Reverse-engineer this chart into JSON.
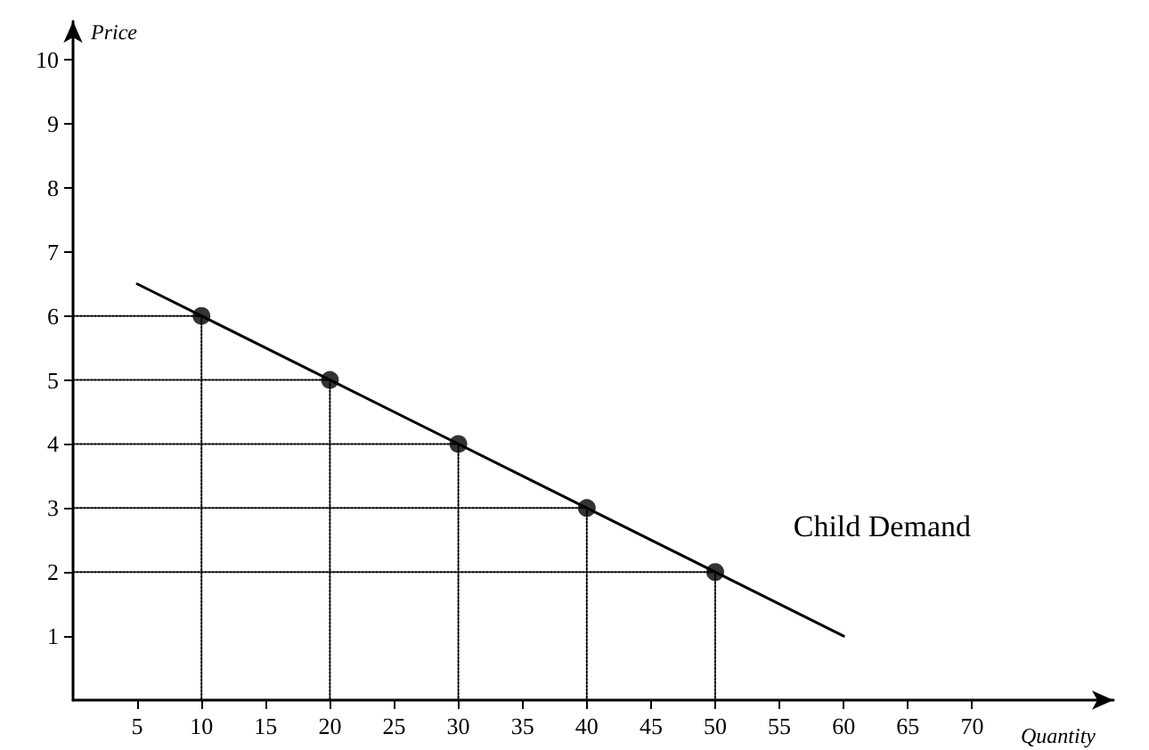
{
  "chart_data": {
    "type": "line",
    "xlabel": "Quantity",
    "ylabel": "Price",
    "xlim": [
      0,
      81
    ],
    "xticks": [
      5,
      10,
      15,
      20,
      25,
      30,
      35,
      40,
      45,
      50,
      55,
      60,
      65,
      70
    ],
    "ylim": [
      0,
      10.6
    ],
    "yticks": [
      1,
      2,
      3,
      4,
      5,
      6,
      7,
      8,
      9,
      10
    ],
    "series": [
      {
        "color": "#000000",
        "x": [
          5,
          60
        ],
        "values": [
          6.5,
          1
        ],
        "marker": "none",
        "line_style": "solid"
      },
      {
        "color": "#000000",
        "x": [
          0,
          10,
          10
        ],
        "values": [
          6,
          6,
          0
        ],
        "marker": "none",
        "line_style": "dotted"
      },
      {
        "color": "#000000",
        "x": [
          0,
          20,
          20
        ],
        "values": [
          5,
          5,
          0
        ],
        "marker": "none",
        "line_style": "dotted"
      },
      {
        "color": "#000000",
        "x": [
          0,
          30,
          30
        ],
        "values": [
          4,
          4,
          0
        ],
        "marker": "none",
        "line_style": "dotted"
      },
      {
        "color": "#000000",
        "x": [
          0,
          40,
          40
        ],
        "values": [
          3,
          3,
          0
        ],
        "marker": "none",
        "line_style": "dotted"
      },
      {
        "color": "#000000",
        "x": [
          0,
          50,
          50
        ],
        "values": [
          2,
          2,
          0
        ],
        "marker": "none",
        "line_style": "dotted"
      },
      {
        "type": "scatter",
        "color": "#000000",
        "x": [
          10,
          20,
          30,
          40,
          50
        ],
        "values": [
          6,
          5,
          4,
          3,
          2
        ],
        "marker": "circle"
      }
    ],
    "annotations": [
      "Child Demand"
    ],
    "grid": false
  }
}
